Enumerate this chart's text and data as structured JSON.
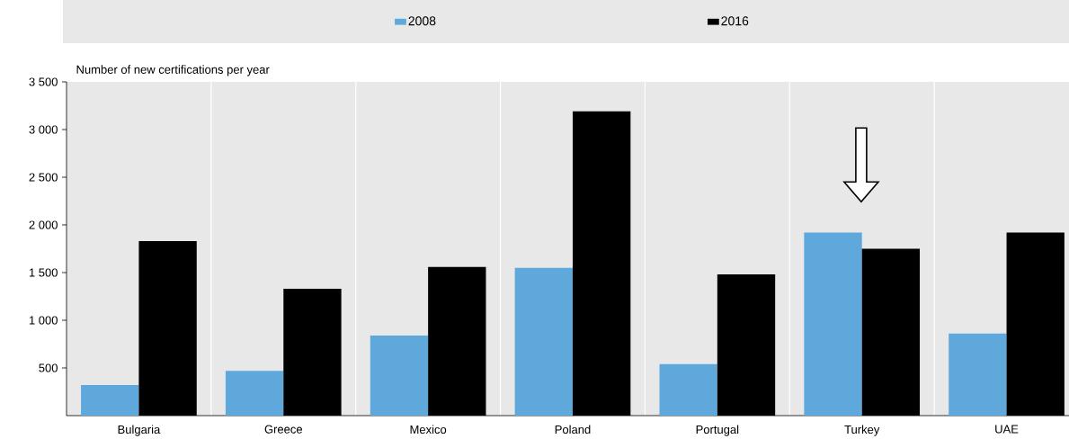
{
  "chart_data": {
    "type": "bar",
    "ylabel": "Number of new certifications per year",
    "categories": [
      "Bulgaria",
      "Greece",
      "Mexico",
      "Poland",
      "Portugal",
      "Turkey",
      "UAE"
    ],
    "series": [
      {
        "name": "2008",
        "color": "#5fa8dc",
        "values": [
          320,
          470,
          840,
          1550,
          540,
          1920,
          860
        ]
      },
      {
        "name": "2016",
        "color": "#000000",
        "values": [
          1830,
          1330,
          1560,
          3190,
          1480,
          1750,
          1920
        ]
      }
    ],
    "ylim": [
      0,
      3500
    ],
    "yticks": [
      500,
      {
        "value": 1000,
        "label": "1 000"
      },
      {
        "value": 1500,
        "label": "1 500"
      },
      {
        "value": 2000,
        "label": "2 000"
      },
      {
        "value": 2500,
        "label": "2 500"
      },
      {
        "value": 3000,
        "label": "3 000"
      },
      {
        "value": 3500,
        "label": "3 500"
      }
    ],
    "grid": "x",
    "legend": "top"
  }
}
